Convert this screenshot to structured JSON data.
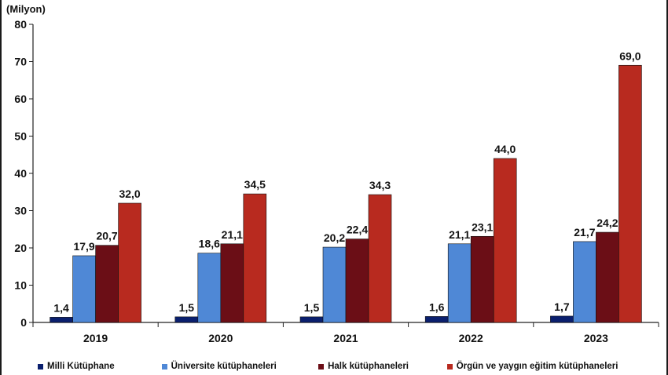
{
  "chart_data": {
    "type": "bar",
    "unit_label": "(Milyon)",
    "categories": [
      "2019",
      "2020",
      "2021",
      "2022",
      "2023"
    ],
    "ylim": [
      0,
      80
    ],
    "yticks": [
      "0",
      "10",
      "20",
      "30",
      "40",
      "50",
      "60",
      "70",
      "80"
    ],
    "grid": false,
    "legend_position": "bottom",
    "series": [
      {
        "name": "Milli Kütüphane",
        "color": "#0a1f6e",
        "values": [
          1.4,
          1.5,
          1.5,
          1.6,
          1.7
        ],
        "labels": [
          "1,4",
          "1,5",
          "1,5",
          "1,6",
          "1,7"
        ]
      },
      {
        "name": "Üniversite kütüphaneleri",
        "color": "#4f88d6",
        "values": [
          17.9,
          18.6,
          20.2,
          21.1,
          21.7
        ],
        "labels": [
          "17,9",
          "18,6",
          "20,2",
          "21,1",
          "21,7"
        ]
      },
      {
        "name": "Halk kütüphaneleri",
        "color": "#6b0e16",
        "values": [
          20.7,
          21.1,
          22.4,
          23.1,
          24.2
        ],
        "labels": [
          "20,7",
          "21,1",
          "22,4",
          "23,1",
          "24,2"
        ]
      },
      {
        "name": "Örgün ve yaygın eğitim kütüphaneleri",
        "color": "#b82a1f",
        "values": [
          32.0,
          34.5,
          34.3,
          44.0,
          69.0
        ],
        "labels": [
          "32,0",
          "34,5",
          "34,3",
          "44,0",
          "69,0"
        ]
      }
    ]
  }
}
